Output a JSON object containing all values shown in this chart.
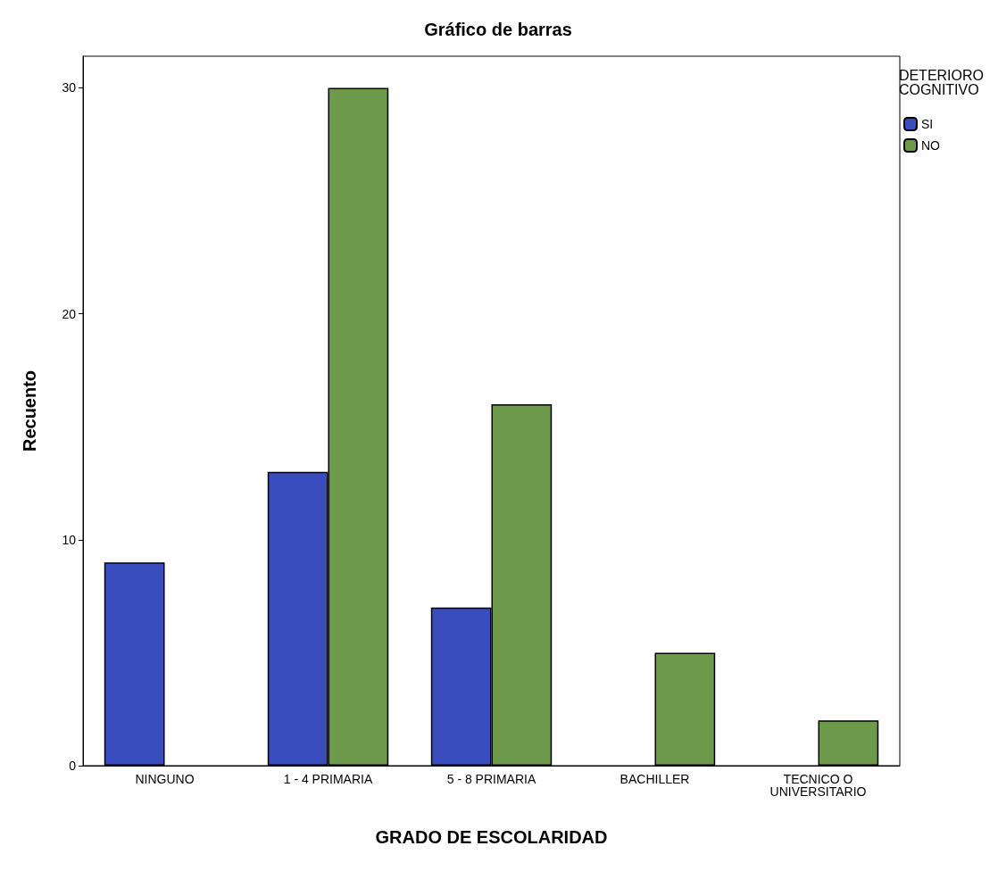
{
  "chart_data": {
    "type": "bar",
    "title": "Gráfico de barras",
    "xlabel": "GRADO DE ESCOLARIDAD",
    "ylabel": "Recuento",
    "legend_title": "DETERIORO COGNITIVO",
    "categories": [
      "NINGUNO",
      "1 - 4 PRIMARIA",
      "5 - 8 PRIMARIA",
      "BACHILLER",
      "TECNICO O\nUNIVERSITARIO"
    ],
    "series": [
      {
        "name": "SI",
        "color": "#3a4dbf",
        "values": [
          9,
          13,
          7,
          null,
          null
        ]
      },
      {
        "name": "NO",
        "color": "#6e9a4c",
        "values": [
          null,
          30,
          16,
          5,
          2
        ]
      }
    ],
    "ylim": [
      0,
      31.4
    ],
    "yticks": [
      0,
      10,
      20,
      30
    ],
    "grid": false,
    "legend": "top right"
  }
}
